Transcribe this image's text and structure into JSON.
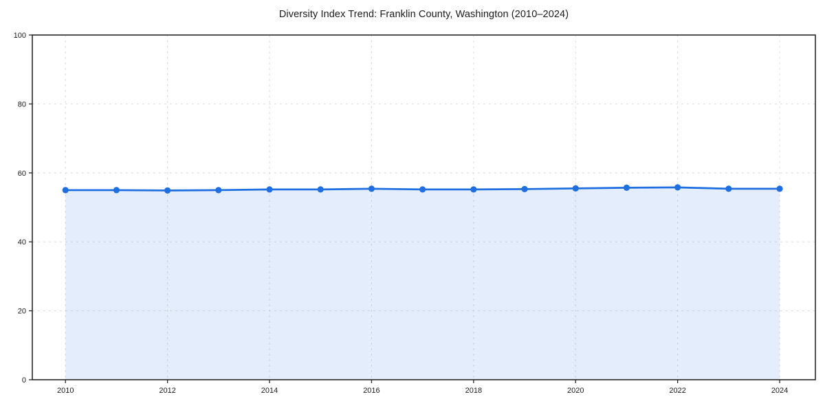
{
  "page": {
    "background_color": "#ffffff"
  },
  "chart_data": {
    "type": "area",
    "title": "Diversity Index Trend: Franklin County, Washington (2010–2024)",
    "xlabel": "",
    "ylabel": "",
    "x": [
      2010,
      2011,
      2012,
      2013,
      2014,
      2015,
      2016,
      2017,
      2018,
      2019,
      2020,
      2021,
      2022,
      2023,
      2024
    ],
    "series": [
      {
        "name": "Diversity Index",
        "values": [
          55.0,
          55.0,
          54.9,
          55.0,
          55.2,
          55.2,
          55.4,
          55.2,
          55.2,
          55.3,
          55.5,
          55.7,
          55.8,
          55.4,
          55.4
        ]
      }
    ],
    "xticks": [
      2010,
      2012,
      2014,
      2016,
      2018,
      2020,
      2022,
      2024
    ],
    "yticks": [
      0,
      20,
      40,
      60,
      80,
      100
    ],
    "xlim": [
      2009.35,
      2024.7
    ],
    "ylim": [
      0,
      100
    ],
    "grid": true,
    "grid_style": "dashed",
    "legend": "none",
    "colors": {
      "line": "#1f6fe0",
      "marker": "#1f6fe0",
      "fill": "#1f6fe0",
      "fill_opacity": 0.12,
      "grid": "#dcdcdc",
      "spine": "#262626",
      "title": "#1a1a1a",
      "tick_label": "#1a1a1a"
    }
  }
}
